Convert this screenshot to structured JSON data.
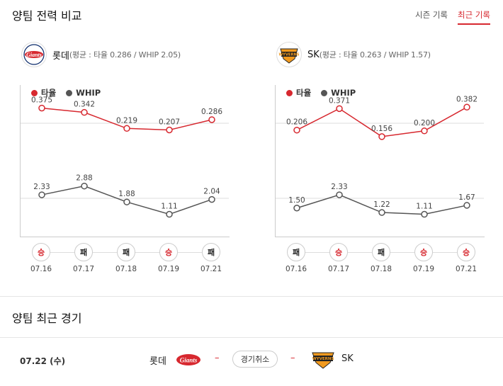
{
  "header": {
    "title": "양팀 전력 비교",
    "tabs": [
      {
        "label": "시즌 기록"
      },
      {
        "label": "최근 기록"
      }
    ]
  },
  "teams": [
    {
      "name": "롯데",
      "avg_text": "(평균 : 타율 0.286 / WHIP 2.05)",
      "logo_text": "Giants"
    },
    {
      "name": "SK",
      "avg_text": "(평균 : 타율 0.263 / WHIP 1.57)",
      "logo_text": "WYVERNS"
    }
  ],
  "legend": {
    "avg": "타율",
    "whip": "WHIP"
  },
  "colors": {
    "avg": "#d7282f",
    "whip": "#555555",
    "win": "#d7282f"
  },
  "chart_data": [
    {
      "type": "line",
      "title": "",
      "categories": [
        "07.16",
        "07.17",
        "07.18",
        "07.19",
        "07.21"
      ],
      "series": [
        {
          "name": "타율",
          "values": [
            0.375,
            0.342,
            0.219,
            0.207,
            0.286
          ],
          "labels": [
            "0.375",
            "0.342",
            "0.219",
            "0.207",
            "0.286"
          ]
        },
        {
          "name": "WHIP",
          "values": [
            2.33,
            2.88,
            1.88,
            1.11,
            2.04
          ],
          "labels": [
            "2.33",
            "2.88",
            "1.88",
            "1.11",
            "2.04"
          ]
        }
      ],
      "results": [
        "승",
        "패",
        "패",
        "승",
        "패"
      ]
    },
    {
      "type": "line",
      "title": "",
      "categories": [
        "07.16",
        "07.17",
        "07.18",
        "07.19",
        "07.21"
      ],
      "series": [
        {
          "name": "타율",
          "values": [
            0.206,
            0.371,
            0.156,
            0.2,
            0.382
          ],
          "labels": [
            "0.206",
            "0.371",
            "0.156",
            "0.200",
            "0.382"
          ]
        },
        {
          "name": "WHIP",
          "values": [
            1.5,
            2.33,
            1.22,
            1.11,
            1.67
          ],
          "labels": [
            "1.50",
            "2.33",
            "1.22",
            "1.11",
            "1.67"
          ]
        }
      ],
      "results": [
        "패",
        "승",
        "패",
        "승",
        "승"
      ]
    }
  ],
  "recent": {
    "title": "양팀 최근 경기",
    "game": {
      "date": "07.22 (수)",
      "home": "롯데",
      "away": "SK",
      "dash": "–",
      "status": "경기취소"
    }
  }
}
